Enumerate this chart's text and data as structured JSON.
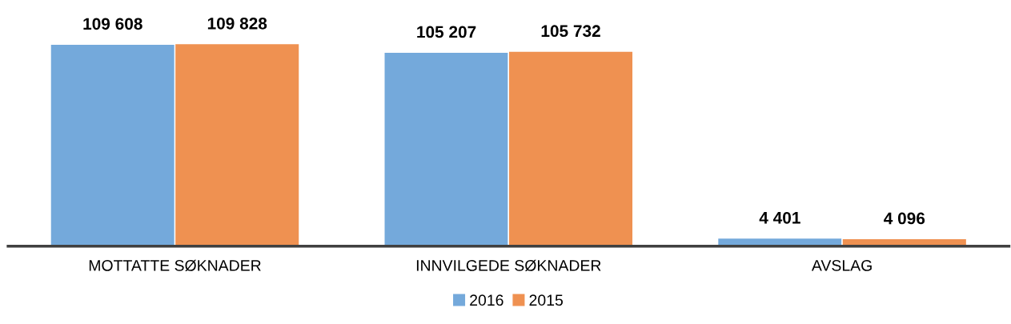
{
  "chart_data": {
    "type": "bar",
    "categories": [
      "MOTTATTE SØKNADER",
      "INNVILGEDE SØKNADER",
      "AVSLAG"
    ],
    "series": [
      {
        "name": "2016",
        "color": "#74a9db",
        "values": [
          109608,
          105207,
          4401
        ],
        "value_labels": [
          "109 608",
          "105 207",
          "4 401"
        ]
      },
      {
        "name": "2015",
        "color": "#ef9151",
        "values": [
          109828,
          105732,
          4096
        ],
        "value_labels": [
          "109 828",
          "105 732",
          "4 096"
        ]
      }
    ],
    "legend": "bottom",
    "grid": false
  }
}
